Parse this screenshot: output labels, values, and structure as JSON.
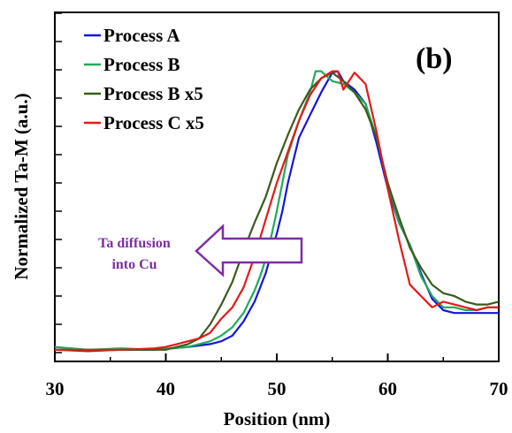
{
  "chart_data": {
    "type": "line",
    "panel_label": "(b)",
    "title": "",
    "xlabel": "Position (nm)",
    "ylabel": "Normalized Ta-M (a.u.)",
    "xlim": [
      30,
      70
    ],
    "ylim": [
      0,
      1.0
    ],
    "x_ticks": [
      30,
      40,
      50,
      60,
      70
    ],
    "x_tick_labels": [
      "30",
      "40",
      "50",
      "60",
      "70"
    ],
    "y_tick_labels_shown": false,
    "grid": false,
    "legend": "top-left",
    "annotation": {
      "text_lines": [
        "Ta diffusion",
        "into Cu"
      ],
      "arrow_direction": "left",
      "color": "#7B2FA0"
    },
    "series": [
      {
        "name": "Process A",
        "color": "#1515D6",
        "points": [
          [
            30,
            0.01
          ],
          [
            33,
            0.01
          ],
          [
            36,
            0.01
          ],
          [
            39,
            0.01
          ],
          [
            42,
            0.02
          ],
          [
            43,
            0.025
          ],
          [
            44,
            0.03
          ],
          [
            45,
            0.04
          ],
          [
            46,
            0.06
          ],
          [
            47,
            0.11
          ],
          [
            48,
            0.18
          ],
          [
            48.5,
            0.23
          ],
          [
            49,
            0.28
          ],
          [
            49.5,
            0.35
          ],
          [
            50,
            0.42
          ],
          [
            50.5,
            0.5
          ],
          [
            51,
            0.6
          ],
          [
            51.5,
            0.68
          ],
          [
            52,
            0.76
          ],
          [
            53,
            0.84
          ],
          [
            54,
            0.92
          ],
          [
            55,
            0.99
          ],
          [
            55.5,
            0.995
          ],
          [
            56,
            0.96
          ],
          [
            57,
            0.93
          ],
          [
            58,
            0.88
          ],
          [
            59,
            0.74
          ],
          [
            60,
            0.58
          ],
          [
            61,
            0.46
          ],
          [
            62,
            0.38
          ],
          [
            63,
            0.28
          ],
          [
            64,
            0.19
          ],
          [
            65,
            0.15
          ],
          [
            66,
            0.14
          ],
          [
            67,
            0.14
          ],
          [
            68,
            0.14
          ],
          [
            69,
            0.14
          ],
          [
            70,
            0.14
          ]
        ]
      },
      {
        "name": "Process B",
        "color": "#22A95A",
        "points": [
          [
            30,
            0.02
          ],
          [
            33,
            0.01
          ],
          [
            36,
            0.015
          ],
          [
            39,
            0.01
          ],
          [
            42,
            0.02
          ],
          [
            43,
            0.03
          ],
          [
            44,
            0.04
          ],
          [
            45,
            0.06
          ],
          [
            46,
            0.09
          ],
          [
            47,
            0.14
          ],
          [
            48,
            0.22
          ],
          [
            48.5,
            0.27
          ],
          [
            49,
            0.33
          ],
          [
            49.5,
            0.41
          ],
          [
            50,
            0.5
          ],
          [
            50.5,
            0.6
          ],
          [
            51,
            0.7
          ],
          [
            52,
            0.82
          ],
          [
            53,
            0.92
          ],
          [
            53.5,
            0.995
          ],
          [
            54,
            0.995
          ],
          [
            55,
            0.96
          ],
          [
            56,
            0.95
          ],
          [
            57,
            0.92
          ],
          [
            58,
            0.88
          ],
          [
            59,
            0.76
          ],
          [
            60,
            0.6
          ],
          [
            61,
            0.46
          ],
          [
            62,
            0.38
          ],
          [
            63,
            0.27
          ],
          [
            64,
            0.2
          ],
          [
            65,
            0.16
          ],
          [
            66,
            0.16
          ],
          [
            67,
            0.15
          ],
          [
            68,
            0.15
          ],
          [
            69,
            0.16
          ],
          [
            70,
            0.16
          ]
        ]
      },
      {
        "name": "Process B x5",
        "color": "#3B5B1C",
        "points": [
          [
            30,
            0.01
          ],
          [
            33,
            0.005
          ],
          [
            36,
            0.01
          ],
          [
            39,
            0.01
          ],
          [
            40,
            0.01
          ],
          [
            41,
            0.02
          ],
          [
            42,
            0.03
          ],
          [
            43,
            0.05
          ],
          [
            44,
            0.1
          ],
          [
            45,
            0.17
          ],
          [
            46,
            0.25
          ],
          [
            47,
            0.36
          ],
          [
            48,
            0.46
          ],
          [
            49,
            0.55
          ],
          [
            50,
            0.67
          ],
          [
            51,
            0.77
          ],
          [
            52,
            0.86
          ],
          [
            53,
            0.93
          ],
          [
            54,
            0.97
          ],
          [
            55,
            0.99
          ],
          [
            56,
            0.96
          ],
          [
            57,
            0.92
          ],
          [
            58,
            0.86
          ],
          [
            59,
            0.76
          ],
          [
            60,
            0.6
          ],
          [
            61,
            0.48
          ],
          [
            62,
            0.37
          ],
          [
            63,
            0.3
          ],
          [
            64,
            0.24
          ],
          [
            65,
            0.21
          ],
          [
            66,
            0.2
          ],
          [
            67,
            0.18
          ],
          [
            68,
            0.17
          ],
          [
            69,
            0.17
          ],
          [
            70,
            0.18
          ]
        ]
      },
      {
        "name": "Process C x5",
        "color": "#E41A1A",
        "points": [
          [
            30,
            0.01
          ],
          [
            33,
            0.01
          ],
          [
            36,
            0.01
          ],
          [
            39,
            0.015
          ],
          [
            40,
            0.02
          ],
          [
            41,
            0.03
          ],
          [
            42,
            0.04
          ],
          [
            43,
            0.05
          ],
          [
            44,
            0.07
          ],
          [
            45,
            0.12
          ],
          [
            46,
            0.16
          ],
          [
            47,
            0.23
          ],
          [
            48,
            0.34
          ],
          [
            49,
            0.47
          ],
          [
            50,
            0.6
          ],
          [
            51,
            0.71
          ],
          [
            52,
            0.82
          ],
          [
            53,
            0.91
          ],
          [
            54,
            0.97
          ],
          [
            55,
            0.995
          ],
          [
            55.5,
            0.995
          ],
          [
            56,
            0.93
          ],
          [
            57,
            0.99
          ],
          [
            58,
            0.95
          ],
          [
            59,
            0.78
          ],
          [
            60,
            0.58
          ],
          [
            61,
            0.4
          ],
          [
            62,
            0.24
          ],
          [
            63,
            0.2
          ],
          [
            64,
            0.16
          ],
          [
            65,
            0.18
          ],
          [
            66,
            0.17
          ],
          [
            67,
            0.16
          ],
          [
            68,
            0.15
          ],
          [
            69,
            0.16
          ],
          [
            70,
            0.16
          ]
        ]
      }
    ]
  }
}
